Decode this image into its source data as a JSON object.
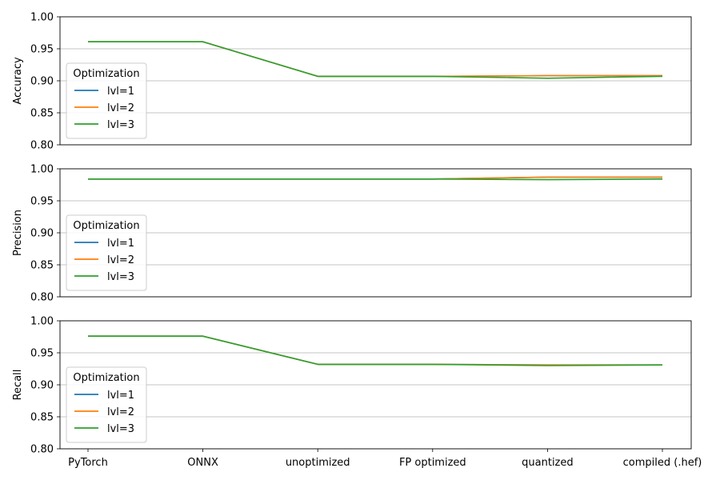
{
  "chart_data": {
    "type": "line",
    "categories": [
      "PyTorch",
      "ONNX",
      "unoptimized",
      "FP optimized",
      "quantized",
      "compiled (.hef)"
    ],
    "legend": {
      "title": "Optimization",
      "placement": "lower-left"
    },
    "grid": "y",
    "subplots": [
      {
        "ylabel": "Accuracy",
        "ylim": [
          0.8,
          1.0
        ],
        "yticks": [
          "0.80",
          "0.85",
          "0.90",
          "0.95",
          "1.00"
        ],
        "series": [
          {
            "name": "lvl=1",
            "color": "#1f77b4",
            "values": [
              0.961,
              0.961,
              0.907,
              0.907,
              0.908,
              0.908
            ]
          },
          {
            "name": "lvl=2",
            "color": "#ff7f0e",
            "values": [
              0.961,
              0.961,
              0.907,
              0.907,
              0.908,
              0.908
            ]
          },
          {
            "name": "lvl=3",
            "color": "#2ca02c",
            "values": [
              0.961,
              0.961,
              0.907,
              0.907,
              0.904,
              0.907
            ]
          }
        ]
      },
      {
        "ylabel": "Precision",
        "ylim": [
          0.8,
          1.0
        ],
        "yticks": [
          "0.80",
          "0.85",
          "0.90",
          "0.95",
          "1.00"
        ],
        "series": [
          {
            "name": "lvl=1",
            "color": "#1f77b4",
            "values": [
              0.984,
              0.984,
              0.984,
              0.984,
              0.987,
              0.987
            ]
          },
          {
            "name": "lvl=2",
            "color": "#ff7f0e",
            "values": [
              0.984,
              0.984,
              0.984,
              0.984,
              0.987,
              0.987
            ]
          },
          {
            "name": "lvl=3",
            "color": "#2ca02c",
            "values": [
              0.984,
              0.984,
              0.984,
              0.984,
              0.983,
              0.984
            ]
          }
        ]
      },
      {
        "ylabel": "Recall",
        "ylim": [
          0.8,
          1.0
        ],
        "yticks": [
          "0.80",
          "0.85",
          "0.90",
          "0.95",
          "1.00"
        ],
        "series": [
          {
            "name": "lvl=1",
            "color": "#1f77b4",
            "values": [
              0.976,
              0.976,
              0.932,
              0.932,
              0.931,
              0.931
            ]
          },
          {
            "name": "lvl=2",
            "color": "#ff7f0e",
            "values": [
              0.976,
              0.976,
              0.932,
              0.932,
              0.931,
              0.931
            ]
          },
          {
            "name": "lvl=3",
            "color": "#2ca02c",
            "values": [
              0.976,
              0.976,
              0.932,
              0.932,
              0.93,
              0.931
            ]
          }
        ]
      }
    ]
  }
}
